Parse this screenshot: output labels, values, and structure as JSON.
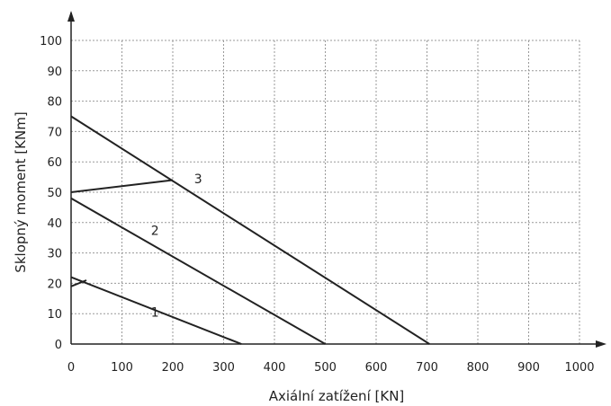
{
  "chart_data": {
    "type": "line",
    "title": "",
    "xlabel": "Axiální zatížení [KN]",
    "ylabel": "Sklopný moment [KNm]",
    "xlim": [
      0,
      1000
    ],
    "ylim": [
      0,
      100
    ],
    "x_ticks": [
      0,
      100,
      200,
      300,
      400,
      500,
      600,
      700,
      800,
      900,
      1000
    ],
    "y_ticks": [
      0,
      10,
      20,
      30,
      40,
      50,
      60,
      70,
      80,
      90,
      100
    ],
    "grid": true,
    "series": [
      {
        "name": "1",
        "points": [
          [
            0,
            19
          ],
          [
            30,
            21
          ]
        ]
      },
      {
        "name": "1",
        "points": [
          [
            0,
            22
          ],
          [
            335,
            0
          ]
        ]
      },
      {
        "name": "2",
        "points": [
          [
            0,
            48
          ],
          [
            500,
            0
          ]
        ]
      },
      {
        "name": "3",
        "points": [
          [
            0,
            50
          ],
          [
            200,
            54
          ]
        ]
      },
      {
        "name": "3",
        "points": [
          [
            0,
            75
          ],
          [
            705,
            0
          ]
        ]
      }
    ],
    "curve_labels": [
      {
        "text": "1",
        "x": 165,
        "y": 9
      },
      {
        "text": "2",
        "x": 165,
        "y": 36
      },
      {
        "text": "3",
        "x": 250,
        "y": 53
      }
    ],
    "colors": {
      "line": "#222222",
      "grid": "#999999"
    }
  }
}
